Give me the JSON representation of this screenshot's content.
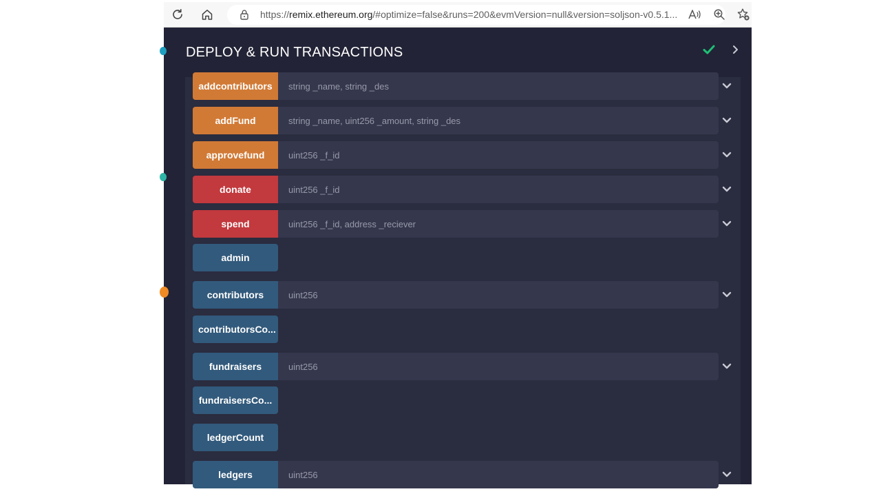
{
  "browser": {
    "url_prefix": "https://",
    "url_domain": "remix.ethereum.org",
    "url_rest": "/#optimize=false&runs=200&evmVersion=null&version=soljson-v0.5.1...",
    "icons": [
      "refresh-icon",
      "home-icon",
      "lock-icon",
      "read-aloud-icon",
      "zoom-icon",
      "favorite-add-icon"
    ]
  },
  "panel": {
    "title": "DEPLOY & RUN TRANSACTIONS",
    "status_icon": "check-icon",
    "collapse_icon": "chevron-right-icon"
  },
  "functions": [
    {
      "label": "addcontributors",
      "color": "orange",
      "placeholder": "string _name, string _des"
    },
    {
      "label": "addFund",
      "color": "orange",
      "placeholder": "string _name, uint256 _amount, string _des"
    },
    {
      "label": "approvefund",
      "color": "orange",
      "placeholder": "uint256 _f_id"
    },
    {
      "label": "donate",
      "color": "red",
      "placeholder": "uint256 _f_id"
    },
    {
      "label": "spend",
      "color": "red",
      "placeholder": "uint256 _f_id, address _reciever"
    },
    {
      "label": "admin",
      "color": "blue",
      "placeholder": null
    },
    {
      "label": "contributors",
      "color": "blue",
      "placeholder": "uint256"
    },
    {
      "label": "contributorsCo...",
      "color": "blue",
      "placeholder": null
    },
    {
      "label": "fundraisers",
      "color": "blue",
      "placeholder": "uint256"
    },
    {
      "label": "fundraisersCo...",
      "color": "blue",
      "placeholder": null
    },
    {
      "label": "ledgerCount",
      "color": "blue",
      "placeholder": null
    },
    {
      "label": "ledgers",
      "color": "blue",
      "placeholder": "uint256"
    }
  ],
  "colors": {
    "orange": "#d17a36",
    "red": "#c2393e",
    "blue": "#325a7c",
    "panel_bg": "#222336",
    "list_bg": "#2a2c3f",
    "input_bg": "#35374d",
    "check": "#1fbf75"
  }
}
